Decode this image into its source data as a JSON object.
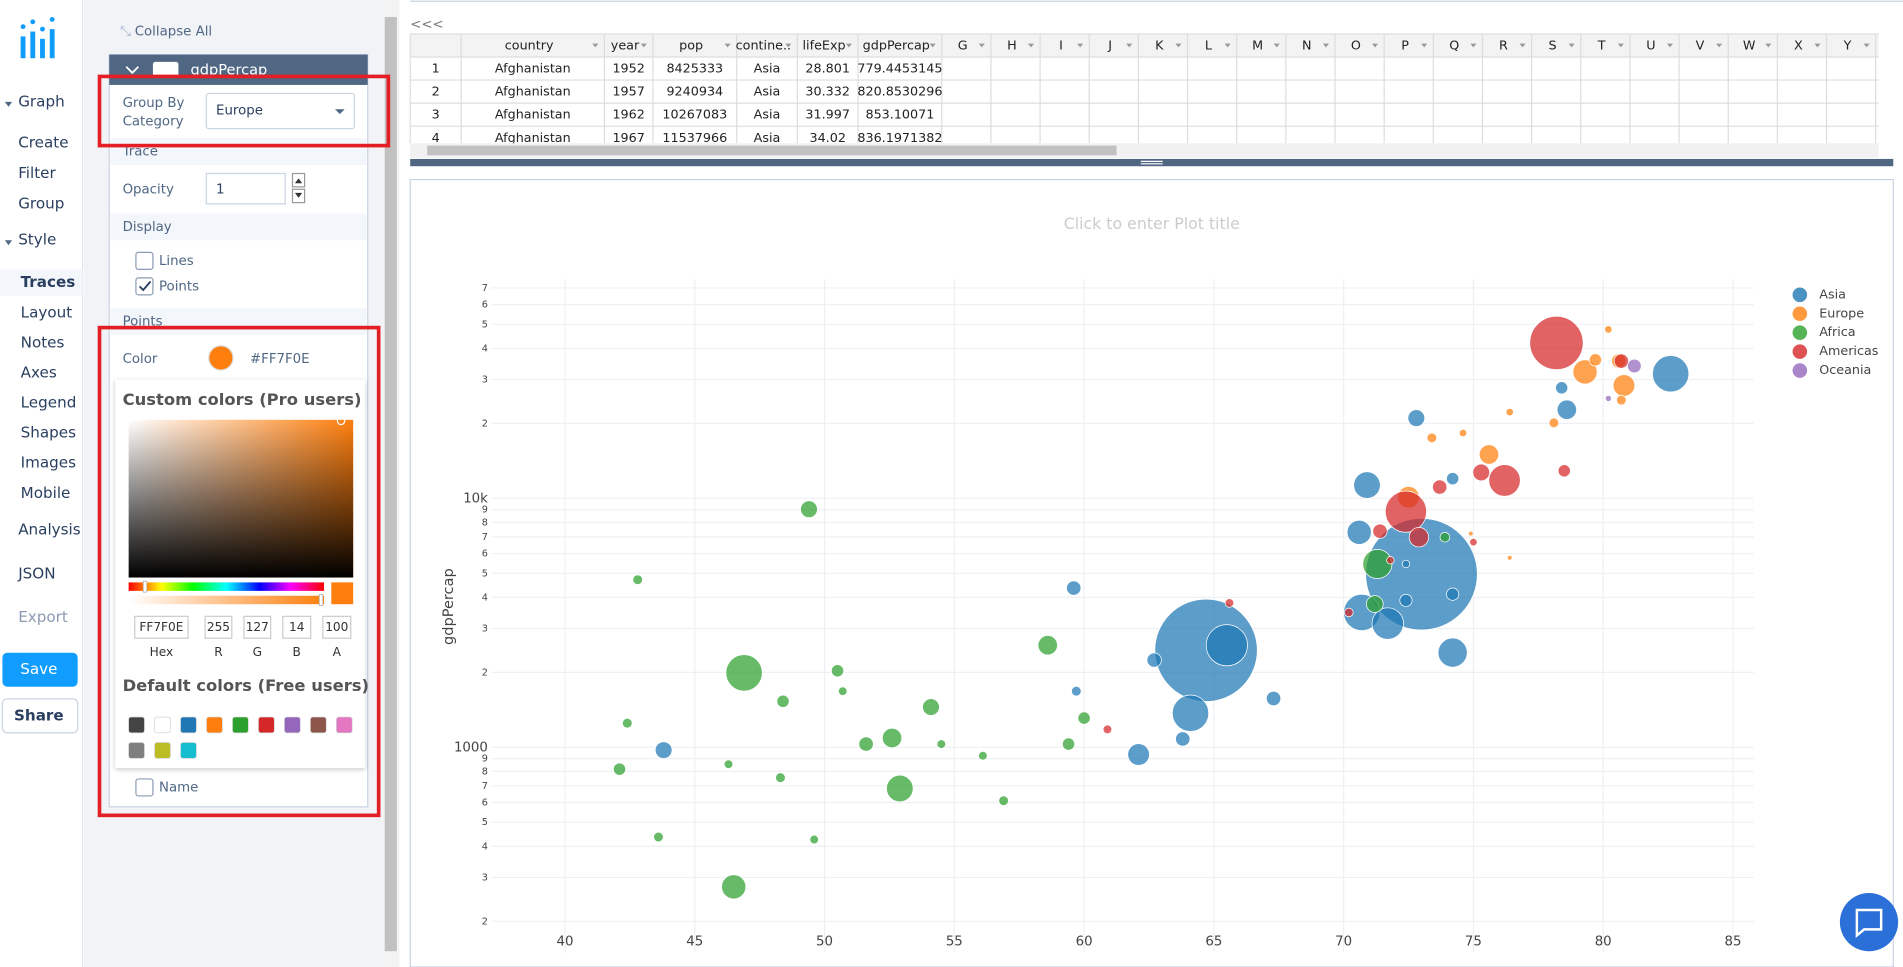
{
  "nav": {
    "graph": "Graph",
    "graph_items": [
      "Create",
      "Filter",
      "Group"
    ],
    "style": "Style",
    "style_items": [
      "Traces",
      "Layout",
      "Notes",
      "Axes",
      "Legend",
      "Shapes",
      "Images",
      "Mobile"
    ],
    "analysis": "Analysis",
    "json": "JSON",
    "export": "Export",
    "save": "Save",
    "share": "Share"
  },
  "panel": {
    "collapse_all": "Collapse All",
    "trace_name": "gdpPercap",
    "group_by_label": [
      "Group By",
      "Category"
    ],
    "group_by_value": "Europe",
    "trace_section": "Trace",
    "opacity_label": "Opacity",
    "opacity_value": 1,
    "display_section": "Display",
    "lines": "Lines",
    "points": "Points",
    "points_section": "Points",
    "color_label": "Color",
    "color_hex": "#FF7F0E",
    "color": "#ff7f0e",
    "picker": {
      "title": "Custom colors (Pro users)",
      "hex": "FF7F0E",
      "r": 255,
      "g": 127,
      "b": 14,
      "a": 100,
      "labels": [
        "Hex",
        "R",
        "G",
        "B",
        "A"
      ],
      "default_title": "Default colors (Free users)",
      "swatches": [
        "#444444",
        "#ffffff",
        "#1f77b4",
        "#ff7f0e",
        "#2ca02c",
        "#d62728",
        "#9467bd",
        "#8c564b",
        "#e377c2",
        "#7f7f7f",
        "#bcbd22",
        "#17becf"
      ]
    },
    "name": "Name"
  },
  "grid": {
    "collapse": "<<<",
    "headers": [
      "country",
      "year",
      "pop",
      "contine..",
      "lifeExp",
      "gdpPercap",
      "G",
      "H",
      "I",
      "J",
      "K",
      "L",
      "M",
      "N",
      "O",
      "P",
      "Q",
      "R",
      "S",
      "T",
      "U",
      "V",
      "W",
      "X",
      "Y"
    ],
    "rows": [
      [
        1,
        "Afghanistan",
        1952,
        8425333,
        "Asia",
        28.801,
        779.4453145
      ],
      [
        2,
        "Afghanistan",
        1957,
        9240934,
        "Asia",
        30.332,
        820.8530296
      ],
      [
        3,
        "Afghanistan",
        1962,
        10267083,
        "Asia",
        31.997,
        853.10071
      ],
      [
        4,
        "Afghanistan",
        1967,
        11537966,
        "Asia",
        34.02,
        836.1971382
      ]
    ]
  },
  "chart_data": {
    "type": "scatter",
    "title": "Click to enter Plot title",
    "y_label": "gdpPercap",
    "log_y": true,
    "grid": true,
    "xlim": [
      36,
      85.8
    ],
    "xticks": [
      40,
      45,
      50,
      55,
      60,
      65,
      70,
      75,
      80,
      85
    ],
    "ylim": [
      134,
      76000
    ],
    "yticks": [
      {
        "value": 200,
        "label": "2"
      },
      {
        "value": 300,
        "label": "3"
      },
      {
        "value": 400,
        "label": "4"
      },
      {
        "value": 500,
        "label": "5"
      },
      {
        "value": 600,
        "label": "6"
      },
      {
        "value": 700,
        "label": "7"
      },
      {
        "value": 800,
        "label": "8"
      },
      {
        "value": 900,
        "label": "9"
      },
      1000,
      {
        "value": 2000,
        "label": "2"
      },
      {
        "value": 3000,
        "label": "3"
      },
      {
        "value": 4000,
        "label": "4"
      },
      {
        "value": 5000,
        "label": "5"
      },
      {
        "value": 6000,
        "label": "6"
      },
      {
        "value": 7000,
        "label": "7"
      },
      {
        "value": 8000,
        "label": "8"
      },
      {
        "value": 9000,
        "label": "9"
      },
      {
        "value": 10000,
        "label": "10k"
      },
      {
        "value": 20000,
        "label": "2"
      },
      {
        "value": 30000,
        "label": "3"
      },
      {
        "value": 40000,
        "label": "4"
      },
      {
        "value": 50000,
        "label": "5"
      },
      {
        "value": 60000,
        "label": "6"
      },
      {
        "value": 70000,
        "label": "7"
      }
    ],
    "series": [
      {
        "name": "Asia",
        "color": "#1f77b4",
        "x": [
          73,
          64.7,
          65.5,
          64.1,
          82.6,
          70.9,
          70.6,
          70.7,
          71.7,
          74.2,
          78.6,
          78.4,
          72.8,
          67.3,
          62.1,
          63.8,
          62.7,
          59.6,
          43.8,
          59.7,
          74.2,
          74.2,
          72.4,
          72.4
        ],
        "values": [
          4959,
          2452,
          2570,
          1370,
          31656,
          11300,
          7300,
          3480,
          3140,
          2400,
          22700,
          27800,
          21000,
          1570,
          935,
          1080,
          2240,
          4360,
          974,
          1680,
          4120,
          12000,
          3890,
          5450
        ],
        "sizes": [
          1318,
          1110,
          180,
          140,
          140,
          75,
          62,
          140,
          105,
          90,
          40,
          16,
          30,
          22,
          50,
          22,
          22,
          22,
          30,
          10,
          16,
          16,
          16,
          6
        ]
      },
      {
        "name": "Europe",
        "color": "#ff7f0e",
        "x": [
          79.3,
          80.8,
          80.6,
          75.6,
          72.5,
          73.4,
          74.6,
          79.7,
          78.1,
          76.4,
          76.4,
          74.9,
          80.7,
          80.2
        ],
        "values": [
          32200,
          28400,
          35600,
          15000,
          10100,
          17500,
          18300,
          36000,
          20100,
          22200,
          5770,
          7220,
          24800,
          47700
        ],
        "sizes": [
          62,
          50,
          22,
          40,
          50,
          10,
          6,
          16,
          10,
          6,
          2.5,
          2.5,
          10,
          6
        ]
      },
      {
        "name": "Africa",
        "color": "#2ca02c",
        "x": [
          49.4,
          46.9,
          52.9,
          46.5,
          58.6,
          71.3,
          71.2,
          42.8,
          52.6,
          54.1,
          51.6,
          48.4,
          50.5,
          42.1,
          42.4,
          43.6,
          46.3,
          48.3,
          56.9,
          59.4,
          56.1,
          49.6,
          54.5,
          73.9,
          50.7,
          60
        ],
        "values": [
          9040,
          1990,
          683,
          275,
          2570,
          5450,
          3760,
          4710,
          1090,
          1450,
          1030,
          1530,
          2030,
          817,
          1250,
          436,
          855,
          755,
          610,
          1030,
          925,
          426,
          1030,
          6980,
          1680,
          1310
        ],
        "sizes": [
          30,
          140,
          75,
          62,
          40,
          90,
          30,
          10,
          40,
          30,
          22,
          16,
          16,
          16,
          10,
          10,
          8,
          10,
          10,
          16,
          8,
          8,
          8,
          10,
          8,
          16
        ]
      },
      {
        "name": "Americas",
        "color": "#d62728",
        "x": [
          78.2,
          76.2,
          72.4,
          72.9,
          80.7,
          73.7,
          75.3,
          71.4,
          78.5,
          70.2,
          65.6,
          60.9,
          75,
          71.8
        ],
        "values": [
          42100,
          11800,
          8840,
          6980,
          35600,
          11100,
          12700,
          7380,
          12900,
          3480,
          3800,
          1180,
          6670,
          5640
        ],
        "sizes": [
          301,
          105,
          180,
          40,
          22,
          22,
          30,
          22,
          16,
          8,
          8,
          8,
          6,
          6
        ]
      },
      {
        "name": "Oceania",
        "color": "#9467bd",
        "x": [
          81.2,
          80.2
        ],
        "values": [
          34000,
          25200
        ],
        "sizes": [
          20,
          4
        ]
      }
    ]
  }
}
